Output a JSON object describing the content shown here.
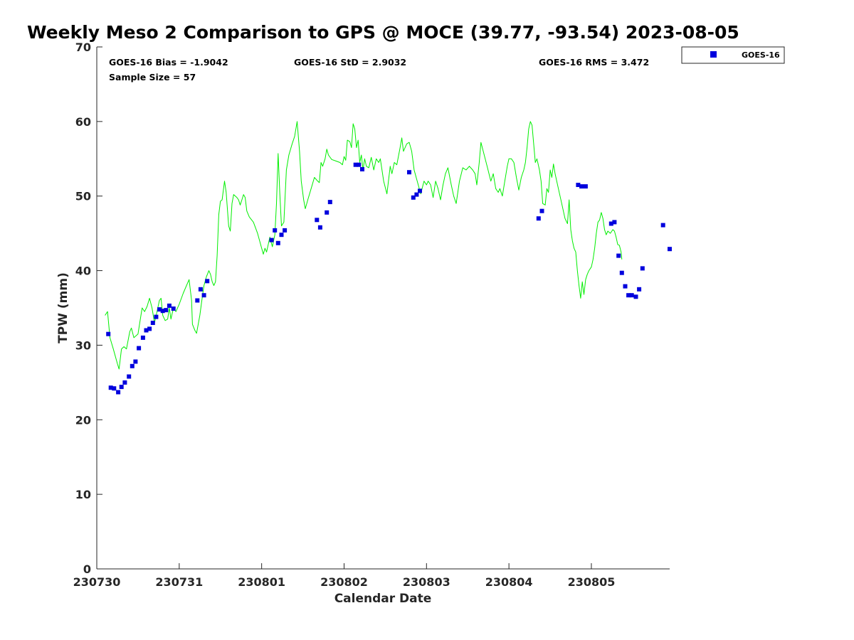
{
  "chart_data": {
    "type": "scatter",
    "title": "Weekly Meso 2 Comparison to GPS @ MOCE (39.77, -93.54) 2023-08-05",
    "xlabel": "Calendar Date",
    "ylabel": "TPW (mm)",
    "xlim": [
      0,
      6.95
    ],
    "ylim": [
      0,
      70
    ],
    "x_ticks": [
      {
        "value": 0,
        "label": "230730"
      },
      {
        "value": 1,
        "label": "230731"
      },
      {
        "value": 2,
        "label": "230801"
      },
      {
        "value": 3,
        "label": "230802"
      },
      {
        "value": 4,
        "label": "230803"
      },
      {
        "value": 5,
        "label": "230804"
      },
      {
        "value": 6,
        "label": "230805"
      }
    ],
    "y_ticks": [
      0,
      10,
      20,
      30,
      40,
      50,
      60,
      70
    ],
    "stats": {
      "bias": "GOES-16 Bias = -1.9042",
      "std": "GOES-16 StD = 2.9032",
      "rms": "GOES-16 RMS = 3.472",
      "sample": "Sample Size = 57"
    },
    "legend": {
      "label": "GOES-16",
      "placement": "outside-top-right"
    },
    "series": [
      {
        "name": "GPS",
        "type": "line",
        "color": "#00ee00",
        "points": [
          [
            0.1,
            34.0
          ],
          [
            0.13,
            34.5
          ],
          [
            0.16,
            31.0
          ],
          [
            0.2,
            29.5
          ],
          [
            0.25,
            27.5
          ],
          [
            0.27,
            26.8
          ],
          [
            0.3,
            29.5
          ],
          [
            0.33,
            29.8
          ],
          [
            0.36,
            29.5
          ],
          [
            0.4,
            31.8
          ],
          [
            0.42,
            32.3
          ],
          [
            0.45,
            31.0
          ],
          [
            0.48,
            31.3
          ],
          [
            0.5,
            31.5
          ],
          [
            0.55,
            35.0
          ],
          [
            0.58,
            34.5
          ],
          [
            0.61,
            35.2
          ],
          [
            0.64,
            36.3
          ],
          [
            0.67,
            35.0
          ],
          [
            0.7,
            33.0
          ],
          [
            0.73,
            34.5
          ],
          [
            0.76,
            36.0
          ],
          [
            0.78,
            36.3
          ],
          [
            0.8,
            34.0
          ],
          [
            0.83,
            33.3
          ],
          [
            0.86,
            33.5
          ],
          [
            0.88,
            35.0
          ],
          [
            0.9,
            33.5
          ],
          [
            0.93,
            35.0
          ],
          [
            0.96,
            34.5
          ],
          [
            1.0,
            35.5
          ],
          [
            1.05,
            37.0
          ],
          [
            1.1,
            38.3
          ],
          [
            1.12,
            38.8
          ],
          [
            1.15,
            36.0
          ],
          [
            1.16,
            32.8
          ],
          [
            1.19,
            32.0
          ],
          [
            1.21,
            31.6
          ],
          [
            1.25,
            34.0
          ],
          [
            1.28,
            36.5
          ],
          [
            1.3,
            38.0
          ],
          [
            1.33,
            39.2
          ],
          [
            1.36,
            40.0
          ],
          [
            1.38,
            39.5
          ],
          [
            1.4,
            38.5
          ],
          [
            1.42,
            38.0
          ],
          [
            1.44,
            38.5
          ],
          [
            1.46,
            42.0
          ],
          [
            1.48,
            47.5
          ],
          [
            1.5,
            49.3
          ],
          [
            1.52,
            49.5
          ],
          [
            1.55,
            52.0
          ],
          [
            1.57,
            50.5
          ],
          [
            1.6,
            46.0
          ],
          [
            1.62,
            45.3
          ],
          [
            1.64,
            49.0
          ],
          [
            1.66,
            50.2
          ],
          [
            1.7,
            49.8
          ],
          [
            1.72,
            49.5
          ],
          [
            1.74,
            48.8
          ],
          [
            1.76,
            49.5
          ],
          [
            1.78,
            50.2
          ],
          [
            1.8,
            49.8
          ],
          [
            1.82,
            48.0
          ],
          [
            1.85,
            47.2
          ],
          [
            1.9,
            46.5
          ],
          [
            1.95,
            45.0
          ],
          [
            2.0,
            43.0
          ],
          [
            2.02,
            42.2
          ],
          [
            2.04,
            43.0
          ],
          [
            2.06,
            42.5
          ],
          [
            2.08,
            43.5
          ],
          [
            2.1,
            44.5
          ],
          [
            2.13,
            43.2
          ],
          [
            2.16,
            44.8
          ],
          [
            2.18,
            49.0
          ],
          [
            2.2,
            55.7
          ],
          [
            2.22,
            50.5
          ],
          [
            2.24,
            46.0
          ],
          [
            2.27,
            46.5
          ],
          [
            2.3,
            53.5
          ],
          [
            2.33,
            55.5
          ],
          [
            2.37,
            57.0
          ],
          [
            2.4,
            58.0
          ],
          [
            2.43,
            60.0
          ],
          [
            2.46,
            56.0
          ],
          [
            2.48,
            52.0
          ],
          [
            2.51,
            49.5
          ],
          [
            2.53,
            48.3
          ],
          [
            2.56,
            49.5
          ],
          [
            2.6,
            51.0
          ],
          [
            2.64,
            52.5
          ],
          [
            2.68,
            52.0
          ],
          [
            2.7,
            51.8
          ],
          [
            2.72,
            54.5
          ],
          [
            2.74,
            54.0
          ],
          [
            2.77,
            55.0
          ],
          [
            2.79,
            56.3
          ],
          [
            2.81,
            55.5
          ],
          [
            2.85,
            54.9
          ],
          [
            2.9,
            54.7
          ],
          [
            2.95,
            54.5
          ],
          [
            2.98,
            54.2
          ],
          [
            3.0,
            55.3
          ],
          [
            3.02,
            54.8
          ],
          [
            3.04,
            57.5
          ],
          [
            3.07,
            57.3
          ],
          [
            3.09,
            56.5
          ],
          [
            3.11,
            59.7
          ],
          [
            3.13,
            59.0
          ],
          [
            3.15,
            56.5
          ],
          [
            3.17,
            57.5
          ],
          [
            3.19,
            54.5
          ],
          [
            3.21,
            55.5
          ],
          [
            3.23,
            53.5
          ],
          [
            3.25,
            55.0
          ],
          [
            3.27,
            54.0
          ],
          [
            3.3,
            53.8
          ],
          [
            3.33,
            55.2
          ],
          [
            3.36,
            53.5
          ],
          [
            3.39,
            55.0
          ],
          [
            3.42,
            54.5
          ],
          [
            3.44,
            55.0
          ],
          [
            3.48,
            52.0
          ],
          [
            3.52,
            50.3
          ],
          [
            3.56,
            54.0
          ],
          [
            3.58,
            53.0
          ],
          [
            3.61,
            54.5
          ],
          [
            3.64,
            54.2
          ],
          [
            3.68,
            56.5
          ],
          [
            3.7,
            57.8
          ],
          [
            3.72,
            56.0
          ],
          [
            3.76,
            57.0
          ],
          [
            3.79,
            57.2
          ],
          [
            3.82,
            56.0
          ],
          [
            3.85,
            53.5
          ],
          [
            3.9,
            51.5
          ],
          [
            3.93,
            50.3
          ],
          [
            3.97,
            52.0
          ],
          [
            4.0,
            51.5
          ],
          [
            4.02,
            52.0
          ],
          [
            4.05,
            51.5
          ],
          [
            4.08,
            49.8
          ],
          [
            4.11,
            52.0
          ],
          [
            4.14,
            51.0
          ],
          [
            4.17,
            49.5
          ],
          [
            4.2,
            51.5
          ],
          [
            4.23,
            53.0
          ],
          [
            4.26,
            53.8
          ],
          [
            4.3,
            51.5
          ],
          [
            4.33,
            50.0
          ],
          [
            4.36,
            49.0
          ],
          [
            4.4,
            52.0
          ],
          [
            4.44,
            53.8
          ],
          [
            4.48,
            53.5
          ],
          [
            4.52,
            54.0
          ],
          [
            4.56,
            53.5
          ],
          [
            4.59,
            53.0
          ],
          [
            4.61,
            51.5
          ],
          [
            4.64,
            54.5
          ],
          [
            4.66,
            57.2
          ],
          [
            4.7,
            55.5
          ],
          [
            4.74,
            53.8
          ],
          [
            4.78,
            52.0
          ],
          [
            4.81,
            53.0
          ],
          [
            4.84,
            51.0
          ],
          [
            4.87,
            50.5
          ],
          [
            4.89,
            51.0
          ],
          [
            4.92,
            50.0
          ],
          [
            4.95,
            52.0
          ],
          [
            4.98,
            54.0
          ],
          [
            5.0,
            55.0
          ],
          [
            5.03,
            55.0
          ],
          [
            5.06,
            54.5
          ],
          [
            5.09,
            52.5
          ],
          [
            5.12,
            50.8
          ],
          [
            5.15,
            52.5
          ],
          [
            5.18,
            53.5
          ],
          [
            5.2,
            54.5
          ],
          [
            5.22,
            56.5
          ],
          [
            5.24,
            59.0
          ],
          [
            5.26,
            60.0
          ],
          [
            5.28,
            59.5
          ],
          [
            5.3,
            57.0
          ],
          [
            5.32,
            54.5
          ],
          [
            5.34,
            55.0
          ],
          [
            5.37,
            53.5
          ],
          [
            5.39,
            52.0
          ],
          [
            5.41,
            49.0
          ],
          [
            5.44,
            48.8
          ],
          [
            5.46,
            51.0
          ],
          [
            5.48,
            50.5
          ],
          [
            5.5,
            53.5
          ],
          [
            5.52,
            52.5
          ],
          [
            5.54,
            54.3
          ],
          [
            5.56,
            53.0
          ],
          [
            5.6,
            51.0
          ],
          [
            5.64,
            49.0
          ],
          [
            5.68,
            47.0
          ],
          [
            5.71,
            46.3
          ],
          [
            5.73,
            49.5
          ],
          [
            5.75,
            45.5
          ],
          [
            5.77,
            44.0
          ],
          [
            5.79,
            43.0
          ],
          [
            5.81,
            42.5
          ],
          [
            5.83,
            40.0
          ],
          [
            5.85,
            38.0
          ],
          [
            5.87,
            36.3
          ],
          [
            5.89,
            38.5
          ],
          [
            5.91,
            36.8
          ],
          [
            5.93,
            38.8
          ],
          [
            5.95,
            39.5
          ],
          [
            5.97,
            40.0
          ],
          [
            6.0,
            40.5
          ],
          [
            6.02,
            41.5
          ],
          [
            6.04,
            43.0
          ],
          [
            6.06,
            45.0
          ],
          [
            6.08,
            46.5
          ],
          [
            6.1,
            46.8
          ],
          [
            6.12,
            47.8
          ],
          [
            6.14,
            47.0
          ],
          [
            6.16,
            45.5
          ],
          [
            6.18,
            44.8
          ],
          [
            6.2,
            45.3
          ],
          [
            6.23,
            45.0
          ],
          [
            6.26,
            45.5
          ],
          [
            6.28,
            45.3
          ],
          [
            6.3,
            44.5
          ],
          [
            6.32,
            43.5
          ],
          [
            6.34,
            43.4
          ],
          [
            6.36,
            42.5
          ],
          [
            6.37,
            41.5
          ]
        ]
      },
      {
        "name": "GOES-16",
        "type": "scatter",
        "color": "#0000dd",
        "points": [
          [
            0.14,
            31.5
          ],
          [
            0.17,
            24.3
          ],
          [
            0.21,
            24.2
          ],
          [
            0.26,
            23.7
          ],
          [
            0.3,
            24.4
          ],
          [
            0.34,
            25.0
          ],
          [
            0.39,
            25.8
          ],
          [
            0.43,
            27.2
          ],
          [
            0.47,
            27.8
          ],
          [
            0.51,
            29.6
          ],
          [
            0.56,
            31.0
          ],
          [
            0.6,
            32.0
          ],
          [
            0.64,
            32.2
          ],
          [
            0.68,
            33.0
          ],
          [
            0.72,
            33.8
          ],
          [
            0.76,
            34.8
          ],
          [
            0.8,
            34.6
          ],
          [
            0.84,
            34.7
          ],
          [
            0.88,
            35.3
          ],
          [
            0.93,
            34.9
          ],
          [
            1.22,
            36.0
          ],
          [
            1.26,
            37.5
          ],
          [
            1.3,
            36.7
          ],
          [
            1.34,
            38.6
          ],
          [
            2.12,
            44.1
          ],
          [
            2.16,
            45.4
          ],
          [
            2.2,
            43.7
          ],
          [
            2.24,
            44.8
          ],
          [
            2.28,
            45.4
          ],
          [
            2.67,
            46.8
          ],
          [
            2.71,
            45.8
          ],
          [
            2.79,
            47.8
          ],
          [
            2.83,
            49.2
          ],
          [
            3.14,
            54.2
          ],
          [
            3.18,
            54.2
          ],
          [
            3.22,
            53.6
          ],
          [
            3.79,
            53.2
          ],
          [
            3.84,
            49.8
          ],
          [
            3.88,
            50.2
          ],
          [
            3.92,
            50.7
          ],
          [
            5.36,
            47.0
          ],
          [
            5.4,
            48.0
          ],
          [
            5.84,
            51.5
          ],
          [
            5.88,
            51.3
          ],
          [
            5.93,
            51.3
          ],
          [
            6.24,
            46.3
          ],
          [
            6.28,
            46.5
          ],
          [
            6.33,
            42.0
          ],
          [
            6.37,
            39.7
          ],
          [
            6.41,
            37.9
          ],
          [
            6.45,
            36.7
          ],
          [
            6.49,
            36.7
          ],
          [
            6.54,
            36.5
          ],
          [
            6.58,
            37.5
          ],
          [
            6.62,
            40.3
          ],
          [
            6.87,
            46.1
          ],
          [
            6.95,
            42.9
          ]
        ]
      }
    ]
  }
}
